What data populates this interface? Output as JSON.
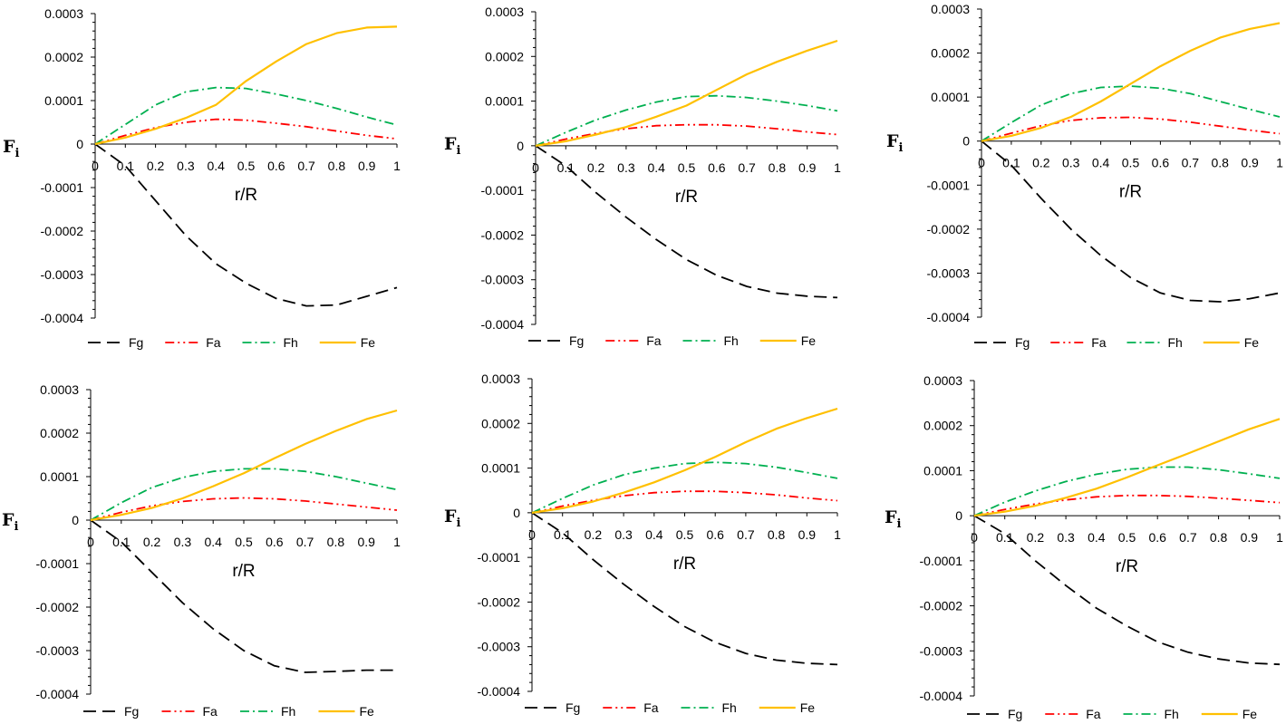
{
  "styles": {
    "Fg": {
      "color": "#000000",
      "dash": "14,7",
      "width": 1.8
    },
    "Fa": {
      "color": "#ff0000",
      "dash": "10,4,2,4,2,4",
      "width": 1.8
    },
    "Fh": {
      "color": "#00b050",
      "dash": "10,4,2,4",
      "width": 1.8
    },
    "Fe": {
      "color": "#ffc000",
      "dash": "",
      "width": 2.2
    }
  },
  "chart_data": [
    {
      "type": "line",
      "xlabel": "r/R",
      "ylabel": "F",
      "ylabel_sub": "i",
      "xticks": [
        "0",
        "0.1",
        "0.2",
        "0.3",
        "0.4",
        "0.5",
        "0.6",
        "0.7",
        "0.8",
        "0.9",
        "1"
      ],
      "yticks": [
        "0.0003",
        "0.0002",
        "0.0001",
        "0",
        "-0.0001",
        "-0.0002",
        "-0.0003",
        "-0.0004"
      ],
      "ylim": [
        -0.0004,
        0.0003
      ],
      "x": [
        0,
        0.1,
        0.2,
        0.3,
        0.4,
        0.5,
        0.6,
        0.7,
        0.8,
        0.9,
        1
      ],
      "series": [
        {
          "name": "Fg",
          "values": [
            0,
            -5e-05,
            -0.00013,
            -0.00021,
            -0.000275,
            -0.00032,
            -0.000355,
            -0.000372,
            -0.00037,
            -0.00035,
            -0.00033
          ]
        },
        {
          "name": "Fa",
          "values": [
            0,
            2e-05,
            3.8e-05,
            5e-05,
            5.7e-05,
            5.5e-05,
            4.8e-05,
            4e-05,
            3e-05,
            2e-05,
            1.2e-05
          ]
        },
        {
          "name": "Fh",
          "values": [
            0,
            4.5e-05,
            9e-05,
            0.00012,
            0.00013,
            0.000128,
            0.000115,
            0.0001,
            8.2e-05,
            6.2e-05,
            4.4e-05
          ]
        },
        {
          "name": "Fe",
          "values": [
            0,
            1.5e-05,
            3.5e-05,
            6e-05,
            9e-05,
            0.000145,
            0.00019,
            0.00023,
            0.000255,
            0.000268,
            0.00027
          ]
        }
      ]
    },
    {
      "type": "line",
      "xlabel": "r/R",
      "ylabel": "F",
      "ylabel_sub": "i",
      "xticks": [
        "0",
        "0.1",
        "0.2",
        "0.3",
        "0.4",
        "0.5",
        "0.6",
        "0.7",
        "0.8",
        "0.9",
        "1"
      ],
      "yticks": [
        "0.0003",
        "0.0002",
        "0.0001",
        "0",
        "-0.0001",
        "-0.0002",
        "-0.0003",
        "-0.0004"
      ],
      "ylim": [
        -0.0004,
        0.0003
      ],
      "x": [
        0,
        0.1,
        0.2,
        0.3,
        0.4,
        0.5,
        0.6,
        0.7,
        0.8,
        0.9,
        1
      ],
      "series": [
        {
          "name": "Fg",
          "values": [
            0,
            -4.5e-05,
            -0.000105,
            -0.00016,
            -0.00021,
            -0.000255,
            -0.00029,
            -0.000315,
            -0.00033,
            -0.000337,
            -0.00034
          ]
        },
        {
          "name": "Fa",
          "values": [
            0,
            1.5e-05,
            2.8e-05,
            3.8e-05,
            4.5e-05,
            4.7e-05,
            4.7e-05,
            4.4e-05,
            3.8e-05,
            3.1e-05,
            2.5e-05
          ]
        },
        {
          "name": "Fh",
          "values": [
            0,
            3e-05,
            5.8e-05,
            8e-05,
            9.8e-05,
            0.00011,
            0.000112,
            0.000108,
            0.0001,
            9e-05,
            7.8e-05
          ]
        },
        {
          "name": "Fe",
          "values": [
            0,
            1e-05,
            2.5e-05,
            4.2e-05,
            6.5e-05,
            9e-05,
            0.000125,
            0.00016,
            0.000188,
            0.000213,
            0.000235
          ]
        }
      ]
    },
    {
      "type": "line",
      "xlabel": "r/R",
      "ylabel": "F",
      "ylabel_sub": "i",
      "xticks": [
        "0",
        "0.1",
        "0.2",
        "0.3",
        "0.4",
        "0.5",
        "0.6",
        "0.7",
        "0.8",
        "0.9",
        "1"
      ],
      "yticks": [
        "0.0003",
        "0.0002",
        "0.0001",
        "0",
        "-0.0001",
        "-0.0002",
        "-0.0003",
        "-0.0004"
      ],
      "ylim": [
        -0.0004,
        0.0003
      ],
      "x": [
        0,
        0.1,
        0.2,
        0.3,
        0.4,
        0.5,
        0.6,
        0.7,
        0.8,
        0.9,
        1
      ],
      "series": [
        {
          "name": "Fg",
          "values": [
            0,
            -5.5e-05,
            -0.00013,
            -0.0002,
            -0.00026,
            -0.00031,
            -0.000345,
            -0.000362,
            -0.000365,
            -0.000358,
            -0.000345
          ]
        },
        {
          "name": "Fa",
          "values": [
            0,
            1.8e-05,
            3.5e-05,
            4.7e-05,
            5.3e-05,
            5.4e-05,
            5e-05,
            4.3e-05,
            3.4e-05,
            2.5e-05,
            1.7e-05
          ]
        },
        {
          "name": "Fh",
          "values": [
            0,
            4.2e-05,
            8.2e-05,
            0.000108,
            0.000122,
            0.000125,
            0.00012,
            0.000108,
            9e-05,
            7.2e-05,
            5.5e-05
          ]
        },
        {
          "name": "Fe",
          "values": [
            0,
            1.2e-05,
            3e-05,
            5.5e-05,
            9e-05,
            0.00013,
            0.00017,
            0.000205,
            0.000235,
            0.000255,
            0.000268
          ]
        }
      ]
    },
    {
      "type": "line",
      "xlabel": "r/R",
      "ylabel": "F",
      "ylabel_sub": "i",
      "xticks": [
        "0",
        "0.1",
        "0.2",
        "0.3",
        "0.4",
        "0.5",
        "0.6",
        "0.7",
        "0.8",
        "0.9",
        "1"
      ],
      "yticks": [
        "0.0003",
        "0.0002",
        "0.0001",
        "0",
        "-0.0001",
        "-0.0002",
        "-0.0003",
        "-0.0004"
      ],
      "ylim": [
        -0.0004,
        0.0003
      ],
      "x": [
        0,
        0.1,
        0.2,
        0.3,
        0.4,
        0.5,
        0.6,
        0.7,
        0.8,
        0.9,
        1
      ],
      "series": [
        {
          "name": "Fg",
          "values": [
            0,
            -5e-05,
            -0.00012,
            -0.00019,
            -0.00025,
            -0.0003,
            -0.000335,
            -0.00035,
            -0.000348,
            -0.000345,
            -0.000345
          ]
        },
        {
          "name": "Fa",
          "values": [
            0,
            1.8e-05,
            3.3e-05,
            4.3e-05,
            4.9e-05,
            5.1e-05,
            4.9e-05,
            4.4e-05,
            3.7e-05,
            3e-05,
            2.3e-05
          ]
        },
        {
          "name": "Fh",
          "values": [
            0,
            4e-05,
            7.5e-05,
            9.8e-05,
            0.000112,
            0.000118,
            0.000118,
            0.000112,
            0.0001,
            8.5e-05,
            7e-05
          ]
        },
        {
          "name": "Fe",
          "values": [
            0,
            1.2e-05,
            2.8e-05,
            5e-05,
            7.8e-05,
            0.000108,
            0.000142,
            0.000175,
            0.000205,
            0.000232,
            0.000252
          ]
        }
      ]
    },
    {
      "type": "line",
      "xlabel": "r/R",
      "ylabel": "F",
      "ylabel_sub": "i",
      "xticks": [
        "0",
        "0.1",
        "0.2",
        "0.3",
        "0.4",
        "0.5",
        "0.6",
        "0.7",
        "0.8",
        "0.9",
        "1"
      ],
      "yticks": [
        "0.0003",
        "0.0002",
        "0.0001",
        "0",
        "-0.0001",
        "-0.0002",
        "-0.0003",
        "-0.0004"
      ],
      "ylim": [
        -0.0004,
        0.0003
      ],
      "x": [
        0,
        0.1,
        0.2,
        0.3,
        0.4,
        0.5,
        0.6,
        0.7,
        0.8,
        0.9,
        1
      ],
      "series": [
        {
          "name": "Fg",
          "values": [
            0,
            -4.5e-05,
            -0.000105,
            -0.00016,
            -0.00021,
            -0.000255,
            -0.00029,
            -0.000315,
            -0.00033,
            -0.000337,
            -0.00034
          ]
        },
        {
          "name": "Fa",
          "values": [
            0,
            1.5e-05,
            2.8e-05,
            3.8e-05,
            4.5e-05,
            4.8e-05,
            4.8e-05,
            4.5e-05,
            4e-05,
            3.3e-05,
            2.7e-05
          ]
        },
        {
          "name": "Fh",
          "values": [
            0,
            3.2e-05,
            6.2e-05,
            8.5e-05,
            0.0001,
            0.00011,
            0.000113,
            0.00011,
            0.000102,
            9e-05,
            7.7e-05
          ]
        },
        {
          "name": "Fe",
          "values": [
            0,
            1e-05,
            2.5e-05,
            4.5e-05,
            6.8e-05,
            9.5e-05,
            0.000125,
            0.000158,
            0.000188,
            0.000212,
            0.000233
          ]
        }
      ]
    },
    {
      "type": "line",
      "xlabel": "r/R",
      "ylabel": "F",
      "ylabel_sub": "i",
      "xticks": [
        "0",
        "0.1",
        "0.2",
        "0.3",
        "0.4",
        "0.5",
        "0.6",
        "0.7",
        "0.8",
        "0.9",
        "1"
      ],
      "yticks": [
        "0.0003",
        "0.0002",
        "0.0001",
        "0",
        "-0.0001",
        "-0.0002",
        "-0.0003",
        "-0.0004"
      ],
      "ylim": [
        -0.0004,
        0.0003
      ],
      "x": [
        0,
        0.1,
        0.2,
        0.3,
        0.4,
        0.5,
        0.6,
        0.7,
        0.8,
        0.9,
        1
      ],
      "series": [
        {
          "name": "Fg",
          "values": [
            0,
            -4e-05,
            -0.0001,
            -0.000155,
            -0.000205,
            -0.000245,
            -0.00028,
            -0.000303,
            -0.000318,
            -0.000327,
            -0.00033
          ]
        },
        {
          "name": "Fa",
          "values": [
            0,
            1.4e-05,
            2.6e-05,
            3.5e-05,
            4.2e-05,
            4.5e-05,
            4.5e-05,
            4.3e-05,
            3.9e-05,
            3.4e-05,
            2.9e-05
          ]
        },
        {
          "name": "Fh",
          "values": [
            0,
            3e-05,
            5.5e-05,
            7.6e-05,
            9.2e-05,
            0.000103,
            0.000108,
            0.000108,
            0.000102,
            9.3e-05,
            8.3e-05
          ]
        },
        {
          "name": "Fe",
          "values": [
            0,
            9e-06,
            2.2e-05,
            4e-05,
            6e-05,
            8.5e-05,
            0.000112,
            0.000138,
            0.000165,
            0.000192,
            0.000215
          ]
        }
      ]
    }
  ]
}
